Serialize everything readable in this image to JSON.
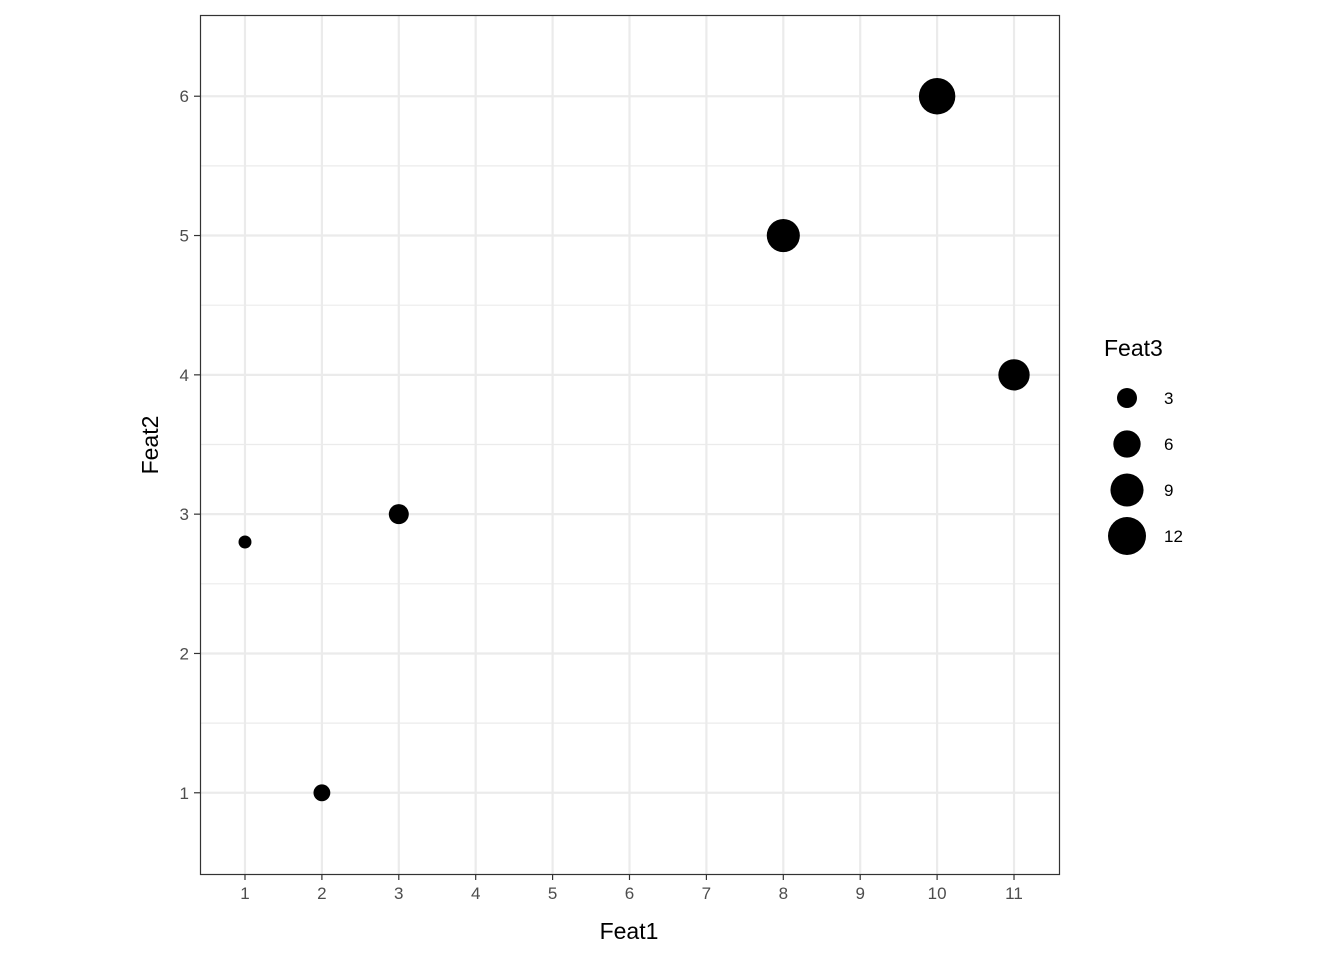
{
  "chart_data": {
    "type": "scatter",
    "xlabel": "Feat1",
    "ylabel": "Feat2",
    "xlim": [
      0.415,
      11.585
    ],
    "ylim": [
      0.417,
      6.583
    ],
    "xticks": [
      1,
      2,
      3,
      4,
      5,
      6,
      7,
      8,
      9,
      10,
      11
    ],
    "yticks": [
      1,
      2,
      3,
      4,
      5,
      6
    ],
    "grid": true,
    "points": [
      {
        "x": 1,
        "y": 2.8,
        "size": 1
      },
      {
        "x": 2,
        "y": 1,
        "size": 2
      },
      {
        "x": 3,
        "y": 3,
        "size": 3
      },
      {
        "x": 8,
        "y": 5,
        "size": 9
      },
      {
        "x": 10,
        "y": 6,
        "size": 11
      },
      {
        "x": 11,
        "y": 4,
        "size": 8
      }
    ],
    "point_color": "#000000",
    "legend": {
      "title": "Feat3",
      "placement": "right",
      "entries": [
        {
          "label": "3",
          "size": 3
        },
        {
          "label": "6",
          "size": 6
        },
        {
          "label": "9",
          "size": 9
        },
        {
          "label": "12",
          "size": 12
        }
      ]
    }
  }
}
